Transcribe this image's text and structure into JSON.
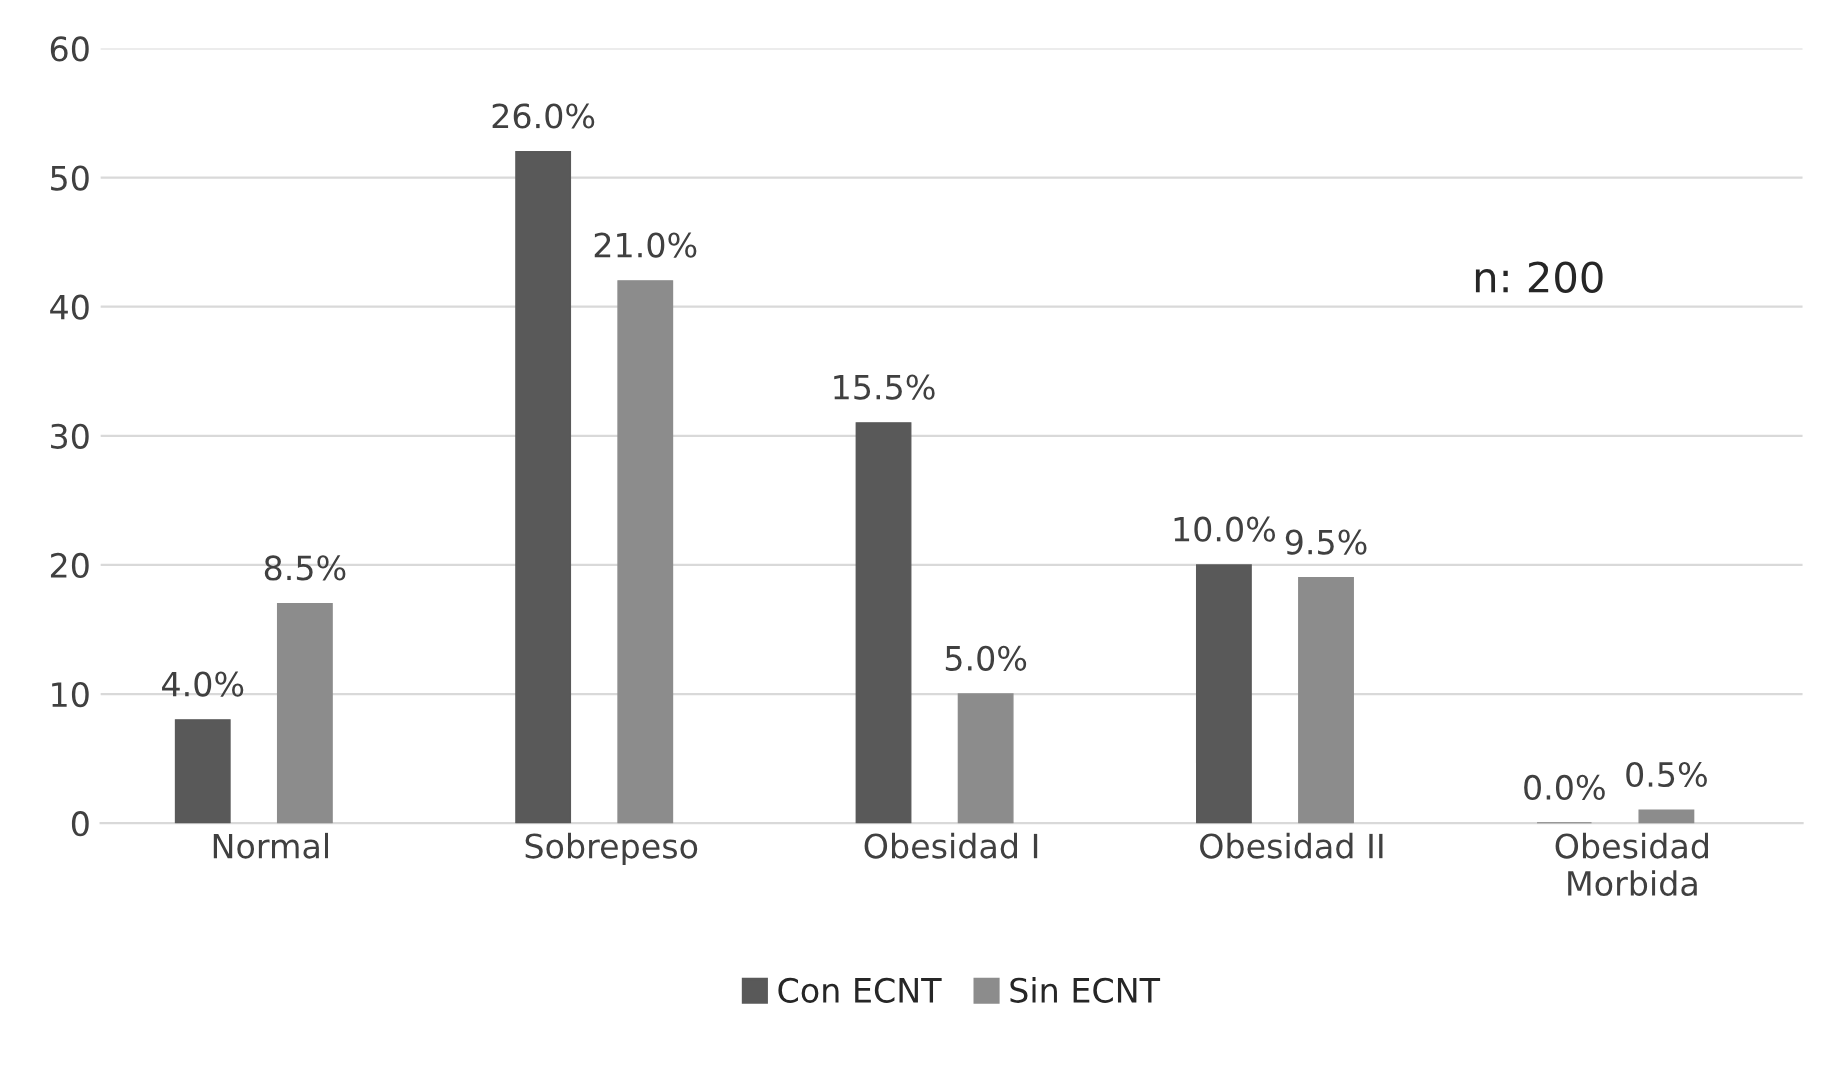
{
  "chart_data": {
    "type": "bar",
    "categories": [
      "Normal",
      "Sobrepeso",
      "Obesidad I",
      "Obesidad II",
      "Obesidad\nMorbida"
    ],
    "series": [
      {
        "name": "Con ECNT",
        "color": "#595959",
        "values": [
          8,
          52,
          31,
          20,
          0
        ]
      },
      {
        "name": "Sin ECNT",
        "color": "#8c8c8c",
        "values": [
          17,
          42,
          10,
          19,
          1
        ]
      }
    ],
    "ylim": [
      0,
      60
    ],
    "yticks": [
      0,
      10,
      20,
      30,
      40,
      50,
      60
    ],
    "grid": "y",
    "legend": "bottom",
    "annotations": [
      "4.0%",
      "8.5%",
      "26.0%",
      "21.0%",
      "15.5%",
      "5.0%",
      "10.0%",
      "9.5%",
      "0.0%",
      "0.5%",
      "n: 200"
    ]
  }
}
